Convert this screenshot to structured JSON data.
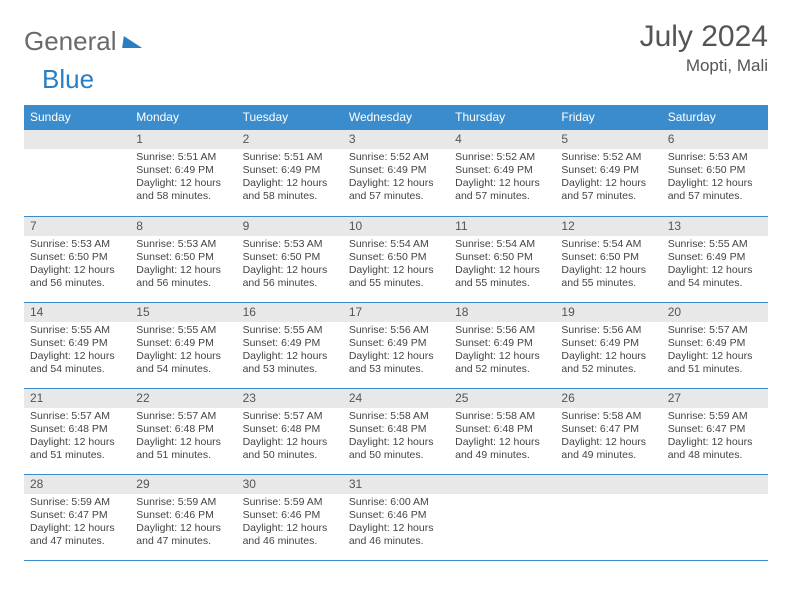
{
  "brand": {
    "general": "General",
    "blue": "Blue"
  },
  "title": "July 2024",
  "location": "Mopti, Mali",
  "colors": {
    "header_band": "#3b8ccc",
    "daynum_band": "#e8e8e8",
    "text": "#444444"
  },
  "weekdays": [
    "Sunday",
    "Monday",
    "Tuesday",
    "Wednesday",
    "Thursday",
    "Friday",
    "Saturday"
  ],
  "weeks": [
    [
      null,
      {
        "n": "1",
        "sr": "Sunrise: 5:51 AM",
        "ss": "Sunset: 6:49 PM",
        "dl": "Daylight: 12 hours and 58 minutes."
      },
      {
        "n": "2",
        "sr": "Sunrise: 5:51 AM",
        "ss": "Sunset: 6:49 PM",
        "dl": "Daylight: 12 hours and 58 minutes."
      },
      {
        "n": "3",
        "sr": "Sunrise: 5:52 AM",
        "ss": "Sunset: 6:49 PM",
        "dl": "Daylight: 12 hours and 57 minutes."
      },
      {
        "n": "4",
        "sr": "Sunrise: 5:52 AM",
        "ss": "Sunset: 6:49 PM",
        "dl": "Daylight: 12 hours and 57 minutes."
      },
      {
        "n": "5",
        "sr": "Sunrise: 5:52 AM",
        "ss": "Sunset: 6:49 PM",
        "dl": "Daylight: 12 hours and 57 minutes."
      },
      {
        "n": "6",
        "sr": "Sunrise: 5:53 AM",
        "ss": "Sunset: 6:50 PM",
        "dl": "Daylight: 12 hours and 57 minutes."
      }
    ],
    [
      {
        "n": "7",
        "sr": "Sunrise: 5:53 AM",
        "ss": "Sunset: 6:50 PM",
        "dl": "Daylight: 12 hours and 56 minutes."
      },
      {
        "n": "8",
        "sr": "Sunrise: 5:53 AM",
        "ss": "Sunset: 6:50 PM",
        "dl": "Daylight: 12 hours and 56 minutes."
      },
      {
        "n": "9",
        "sr": "Sunrise: 5:53 AM",
        "ss": "Sunset: 6:50 PM",
        "dl": "Daylight: 12 hours and 56 minutes."
      },
      {
        "n": "10",
        "sr": "Sunrise: 5:54 AM",
        "ss": "Sunset: 6:50 PM",
        "dl": "Daylight: 12 hours and 55 minutes."
      },
      {
        "n": "11",
        "sr": "Sunrise: 5:54 AM",
        "ss": "Sunset: 6:50 PM",
        "dl": "Daylight: 12 hours and 55 minutes."
      },
      {
        "n": "12",
        "sr": "Sunrise: 5:54 AM",
        "ss": "Sunset: 6:50 PM",
        "dl": "Daylight: 12 hours and 55 minutes."
      },
      {
        "n": "13",
        "sr": "Sunrise: 5:55 AM",
        "ss": "Sunset: 6:49 PM",
        "dl": "Daylight: 12 hours and 54 minutes."
      }
    ],
    [
      {
        "n": "14",
        "sr": "Sunrise: 5:55 AM",
        "ss": "Sunset: 6:49 PM",
        "dl": "Daylight: 12 hours and 54 minutes."
      },
      {
        "n": "15",
        "sr": "Sunrise: 5:55 AM",
        "ss": "Sunset: 6:49 PM",
        "dl": "Daylight: 12 hours and 54 minutes."
      },
      {
        "n": "16",
        "sr": "Sunrise: 5:55 AM",
        "ss": "Sunset: 6:49 PM",
        "dl": "Daylight: 12 hours and 53 minutes."
      },
      {
        "n": "17",
        "sr": "Sunrise: 5:56 AM",
        "ss": "Sunset: 6:49 PM",
        "dl": "Daylight: 12 hours and 53 minutes."
      },
      {
        "n": "18",
        "sr": "Sunrise: 5:56 AM",
        "ss": "Sunset: 6:49 PM",
        "dl": "Daylight: 12 hours and 52 minutes."
      },
      {
        "n": "19",
        "sr": "Sunrise: 5:56 AM",
        "ss": "Sunset: 6:49 PM",
        "dl": "Daylight: 12 hours and 52 minutes."
      },
      {
        "n": "20",
        "sr": "Sunrise: 5:57 AM",
        "ss": "Sunset: 6:49 PM",
        "dl": "Daylight: 12 hours and 51 minutes."
      }
    ],
    [
      {
        "n": "21",
        "sr": "Sunrise: 5:57 AM",
        "ss": "Sunset: 6:48 PM",
        "dl": "Daylight: 12 hours and 51 minutes."
      },
      {
        "n": "22",
        "sr": "Sunrise: 5:57 AM",
        "ss": "Sunset: 6:48 PM",
        "dl": "Daylight: 12 hours and 51 minutes."
      },
      {
        "n": "23",
        "sr": "Sunrise: 5:57 AM",
        "ss": "Sunset: 6:48 PM",
        "dl": "Daylight: 12 hours and 50 minutes."
      },
      {
        "n": "24",
        "sr": "Sunrise: 5:58 AM",
        "ss": "Sunset: 6:48 PM",
        "dl": "Daylight: 12 hours and 50 minutes."
      },
      {
        "n": "25",
        "sr": "Sunrise: 5:58 AM",
        "ss": "Sunset: 6:48 PM",
        "dl": "Daylight: 12 hours and 49 minutes."
      },
      {
        "n": "26",
        "sr": "Sunrise: 5:58 AM",
        "ss": "Sunset: 6:47 PM",
        "dl": "Daylight: 12 hours and 49 minutes."
      },
      {
        "n": "27",
        "sr": "Sunrise: 5:59 AM",
        "ss": "Sunset: 6:47 PM",
        "dl": "Daylight: 12 hours and 48 minutes."
      }
    ],
    [
      {
        "n": "28",
        "sr": "Sunrise: 5:59 AM",
        "ss": "Sunset: 6:47 PM",
        "dl": "Daylight: 12 hours and 47 minutes."
      },
      {
        "n": "29",
        "sr": "Sunrise: 5:59 AM",
        "ss": "Sunset: 6:46 PM",
        "dl": "Daylight: 12 hours and 47 minutes."
      },
      {
        "n": "30",
        "sr": "Sunrise: 5:59 AM",
        "ss": "Sunset: 6:46 PM",
        "dl": "Daylight: 12 hours and 46 minutes."
      },
      {
        "n": "31",
        "sr": "Sunrise: 6:00 AM",
        "ss": "Sunset: 6:46 PM",
        "dl": "Daylight: 12 hours and 46 minutes."
      },
      null,
      null,
      null
    ]
  ]
}
